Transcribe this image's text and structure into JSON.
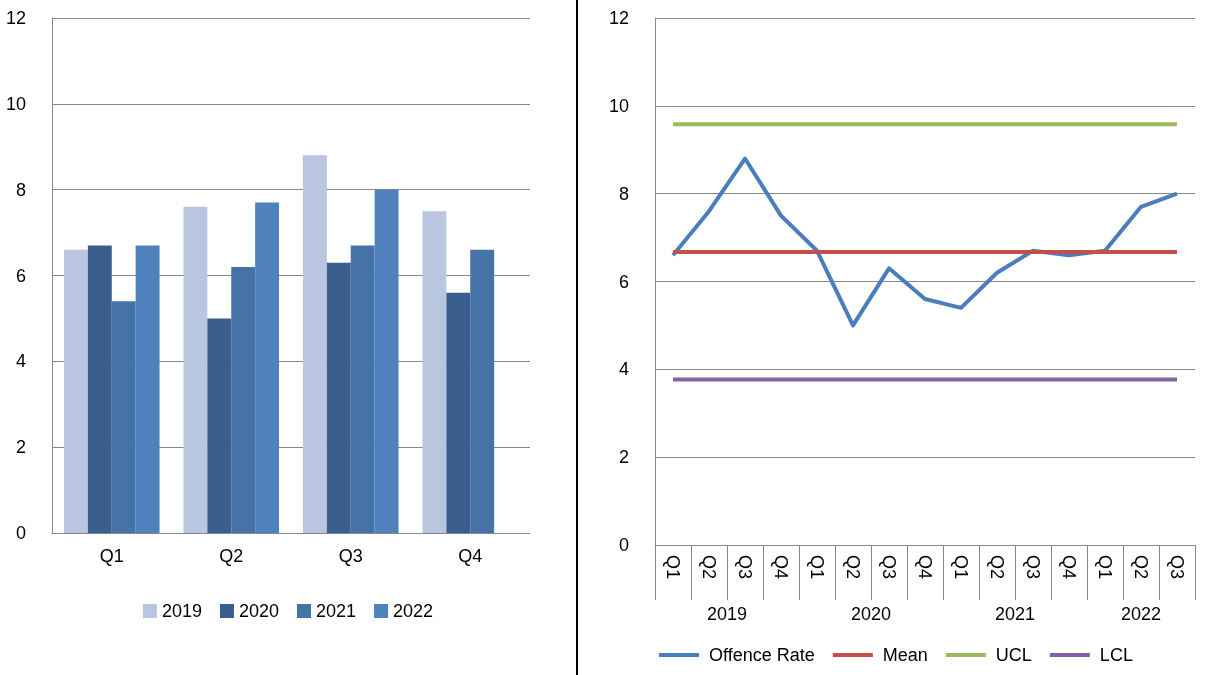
{
  "chart_data": [
    {
      "type": "bar",
      "categories": [
        "Q1",
        "Q2",
        "Q3",
        "Q4"
      ],
      "ylim": [
        0,
        12
      ],
      "yticks": [
        0,
        2,
        4,
        6,
        8,
        10,
        12
      ],
      "grid": "y",
      "legend": "bottom",
      "series": [
        {
          "name": "2019",
          "color": "#b9c6e0",
          "values": [
            6.6,
            7.6,
            8.8,
            7.5
          ]
        },
        {
          "name": "2020",
          "color": "#3a5f8f",
          "values": [
            6.7,
            5.0,
            6.3,
            5.6
          ]
        },
        {
          "name": "2021",
          "color": "#4572a7",
          "values": [
            5.4,
            6.2,
            6.7,
            6.6
          ]
        },
        {
          "name": "2022",
          "color": "#4f81bd",
          "values": [
            6.7,
            7.7,
            8.0,
            null
          ]
        }
      ]
    },
    {
      "type": "line",
      "categories": [
        "Q1",
        "Q2",
        "Q3",
        "Q4",
        "Q1",
        "Q2",
        "Q3",
        "Q4",
        "Q1",
        "Q2",
        "Q3",
        "Q4",
        "Q1",
        "Q2",
        "Q3"
      ],
      "ylim": [
        0,
        12
      ],
      "yticks": [
        0,
        2,
        4,
        6,
        8,
        10,
        12
      ],
      "grid": "y",
      "legend": "bottom",
      "marker": "none",
      "line_style": "solid",
      "annotations": [
        "2019",
        "2020",
        "2021",
        "2022"
      ],
      "series": [
        {
          "name": "Offence Rate",
          "color": "#4a7ebb",
          "values": [
            6.6,
            7.6,
            8.8,
            7.5,
            6.7,
            5.0,
            6.3,
            5.6,
            5.4,
            6.2,
            6.7,
            6.6,
            6.7,
            7.7,
            8.0
          ]
        },
        {
          "name": "Mean",
          "color": "#c0504d",
          "values": [
            6.67,
            6.67,
            6.67,
            6.67,
            6.67,
            6.67,
            6.67,
            6.67,
            6.67,
            6.67,
            6.67,
            6.67,
            6.67,
            6.67,
            6.67
          ]
        },
        {
          "name": "UCL",
          "color": "#9bbb59",
          "values": [
            9.58,
            9.58,
            9.58,
            9.58,
            9.58,
            9.58,
            9.58,
            9.58,
            9.58,
            9.58,
            9.58,
            9.58,
            9.58,
            9.58,
            9.58
          ]
        },
        {
          "name": "LCL",
          "color": "#8064a2",
          "values": [
            3.77,
            3.77,
            3.77,
            3.77,
            3.77,
            3.77,
            3.77,
            3.77,
            3.77,
            3.77,
            3.77,
            3.77,
            3.77,
            3.77,
            3.77
          ]
        }
      ]
    }
  ]
}
